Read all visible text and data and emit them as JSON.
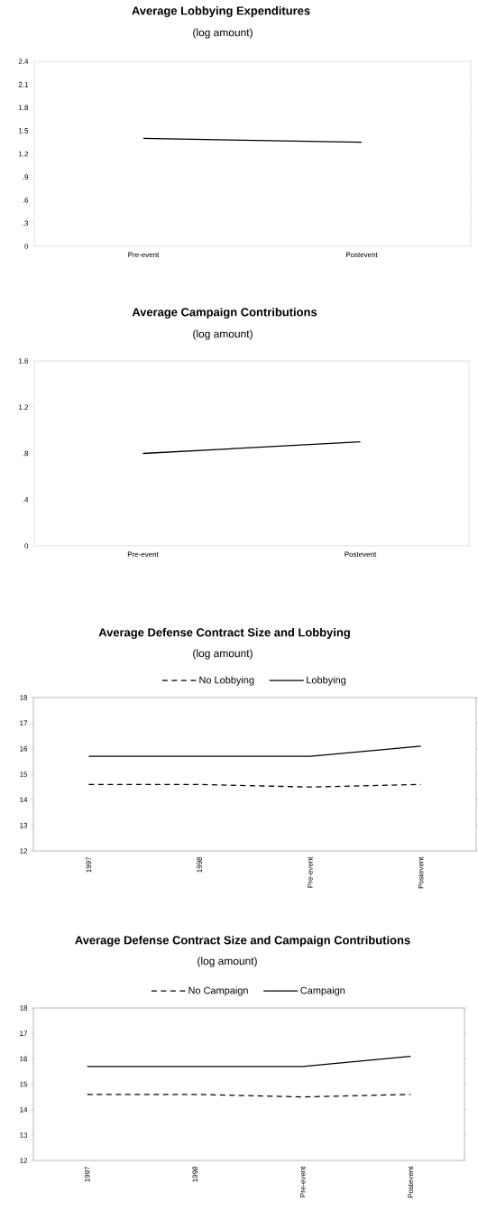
{
  "chart_data": [
    {
      "type": "line",
      "title": "Average Lobbying Expenditures",
      "subtitle": "(log amount)",
      "categories": [
        "Pre-event",
        "Postevent"
      ],
      "series": [
        {
          "color": "#000000",
          "values": [
            1.4,
            1.35
          ]
        }
      ],
      "ylim": [
        0,
        2.4
      ],
      "yticks": [
        0,
        {
          "value": 0.3,
          "label": ".3"
        },
        {
          "value": 0.6,
          "label": ".6"
        },
        {
          "value": 0.9,
          "label": ".9"
        },
        1.2,
        1.5,
        1.8,
        2.1,
        2.4
      ]
    },
    {
      "type": "line",
      "title": "Average Campaign Contributions",
      "subtitle": "(log amount)",
      "categories": [
        "Pre-event",
        "Postevent"
      ],
      "series": [
        {
          "color": "#000000",
          "values": [
            0.8,
            0.9
          ]
        }
      ],
      "ylim": [
        0,
        1.6
      ],
      "yticks": [
        0,
        {
          "value": 0.4,
          "label": ".4"
        },
        {
          "value": 0.8,
          "label": ".8"
        },
        1.2,
        1.6
      ]
    },
    {
      "type": "line",
      "title": "Average Defense Contract Size  and Lobbying",
      "subtitle": "(log amount)",
      "categories": [
        "1997",
        "1998",
        "Pre-event",
        "Postevent"
      ],
      "series": [
        {
          "name": "No Lobbying",
          "color": "#000000",
          "line_style": "dashed",
          "values": [
            14.6,
            14.6,
            14.5,
            14.6
          ]
        },
        {
          "name": "Lobbying",
          "color": "#000000",
          "line_style": "solid",
          "values": [
            15.7,
            15.7,
            15.7,
            16.1
          ]
        }
      ],
      "ylim": [
        12,
        18
      ],
      "yticks": [
        12,
        13,
        14,
        15,
        16,
        17,
        18
      ],
      "legend": "top"
    },
    {
      "type": "line",
      "title": "Average Defense Contract Size and Campaign Contributions",
      "subtitle": "(log amount)",
      "categories": [
        "1997",
        "1998",
        "Pre-event",
        "Postevent"
      ],
      "series": [
        {
          "name": "No Campaign",
          "color": "#000000",
          "line_style": "dashed",
          "values": [
            14.6,
            14.6,
            14.5,
            14.6
          ]
        },
        {
          "name": "Campaign",
          "color": "#000000",
          "line_style": "solid",
          "values": [
            15.7,
            15.7,
            15.7,
            16.1
          ]
        }
      ],
      "ylim": [
        12,
        18
      ],
      "yticks": [
        12,
        13,
        14,
        15,
        16,
        17,
        18
      ],
      "legend": "top"
    }
  ]
}
